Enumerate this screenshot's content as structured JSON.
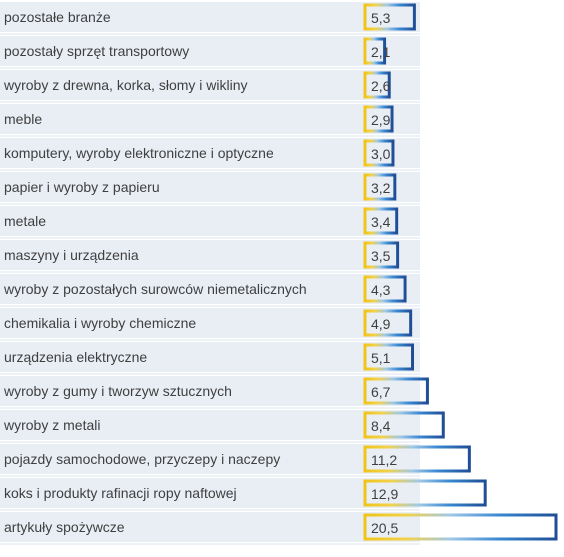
{
  "chart_data": {
    "type": "bar",
    "orientation": "horizontal",
    "categories": [
      "pozostałe branże",
      "pozostały sprzęt transportowy",
      "wyroby z drewna, korka, słomy i wikliny",
      "meble",
      "komputery, wyroby elektroniczne i optyczne",
      "papier i wyroby z papieru",
      "metale",
      "maszyny i urządzenia",
      "wyroby z pozostałych surowców niemetalicznych",
      "chemikalia i wyroby chemiczne",
      "urządzenia elektryczne",
      "wyroby z gumy i tworzyw sztucznych",
      "wyroby z metali",
      "pojazdy samochodowe, przyczepy i naczepy",
      "koks i produkty rafinacji ropy naftowej",
      "artykuły spożywcze"
    ],
    "values": [
      5.3,
      2.1,
      2.6,
      2.9,
      3.0,
      3.2,
      3.4,
      3.5,
      4.3,
      4.9,
      5.1,
      6.7,
      8.4,
      11.2,
      12.9,
      20.5
    ],
    "value_labels": [
      "5,3",
      "2,1",
      "2,6",
      "2,9",
      "3,0",
      "3,2",
      "3,4",
      "3,5",
      "4,3",
      "4,9",
      "5,1",
      "6,7",
      "8,4",
      "11,2",
      "12,9",
      "20,5"
    ],
    "xlim": [
      0,
      20.5
    ],
    "colors": {
      "gold": "#f0c419",
      "light_blue": "#5aa7e0",
      "dark_blue": "#1f4e96",
      "row_band": "#e9eef5",
      "text": "#3f3f3f"
    },
    "bar_style": "outlined gradient",
    "title": "",
    "xlabel": "",
    "ylabel": ""
  }
}
